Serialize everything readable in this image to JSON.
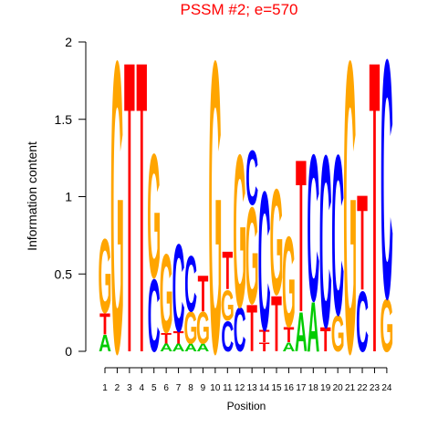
{
  "chart_data": {
    "type": "sequence-logo",
    "title": "PSSM #2; e=570",
    "xlabel": "Position",
    "ylabel": "Information content",
    "ylim": [
      0,
      2
    ],
    "y_ticks": [
      "0",
      "0.5",
      "1",
      "1.5",
      "2"
    ],
    "x_ticks": [
      "1",
      "2",
      "3",
      "4",
      "5",
      "6",
      "7",
      "8",
      "9",
      "10",
      "11",
      "12",
      "13",
      "14",
      "15",
      "16",
      "17",
      "18",
      "19",
      "20",
      "21",
      "22",
      "23",
      "24"
    ],
    "colors": {
      "A": "#00cc00",
      "C": "#0000ff",
      "G": "#ffa500",
      "T": "#ff0000"
    },
    "positions": [
      [
        {
          "letter": "A",
          "height": 0.11
        },
        {
          "letter": "T",
          "height": 0.14
        },
        {
          "letter": "G",
          "height": 0.49
        }
      ],
      [
        {
          "letter": "G",
          "height": 1.93
        }
      ],
      [
        {
          "letter": "T",
          "height": 1.93
        }
      ],
      [
        {
          "letter": "T",
          "height": 1.93
        }
      ],
      [
        {
          "letter": "C",
          "height": 0.48
        },
        {
          "letter": "G",
          "height": 0.82
        }
      ],
      [
        {
          "letter": "A",
          "height": 0.05
        },
        {
          "letter": "T",
          "height": 0.07
        },
        {
          "letter": "G",
          "height": 0.52
        }
      ],
      [
        {
          "letter": "A",
          "height": 0.05
        },
        {
          "letter": "T",
          "height": 0.08
        },
        {
          "letter": "C",
          "height": 0.58
        }
      ],
      [
        {
          "letter": "A",
          "height": 0.05
        },
        {
          "letter": "G",
          "height": 0.21
        },
        {
          "letter": "C",
          "height": 0.37
        }
      ],
      [
        {
          "letter": "A",
          "height": 0.05
        },
        {
          "letter": "G",
          "height": 0.21
        },
        {
          "letter": "T",
          "height": 0.24
        }
      ],
      [
        {
          "letter": "G",
          "height": 1.93
        }
      ],
      [
        {
          "letter": "C",
          "height": 0.2
        },
        {
          "letter": "G",
          "height": 0.2
        },
        {
          "letter": "T",
          "height": 0.25
        }
      ],
      [
        {
          "letter": "C",
          "height": 0.29
        },
        {
          "letter": "G",
          "height": 1.01
        }
      ],
      [
        {
          "letter": "T",
          "height": 0.31
        },
        {
          "letter": "G",
          "height": 0.64
        },
        {
          "letter": "C",
          "height": 0.36
        }
      ],
      [
        {
          "letter": "T",
          "height": 0.06
        },
        {
          "letter": "T",
          "height": 0.08
        },
        {
          "letter": "C",
          "height": 0.92
        }
      ],
      [
        {
          "letter": "T",
          "height": 0.37
        },
        {
          "letter": "G",
          "height": 0.7
        }
      ],
      [
        {
          "letter": "A",
          "height": 0.06
        },
        {
          "letter": "T",
          "height": 0.1
        },
        {
          "letter": "G",
          "height": 0.6
        }
      ],
      [
        {
          "letter": "A",
          "height": 0.26
        },
        {
          "letter": "T",
          "height": 1.01
        }
      ],
      [
        {
          "letter": "A",
          "height": 0.33
        },
        {
          "letter": "C",
          "height": 0.97
        }
      ],
      [
        {
          "letter": "T",
          "height": 0.16
        },
        {
          "letter": "C",
          "height": 1.14
        }
      ],
      [
        {
          "letter": "G",
          "height": 0.24
        },
        {
          "letter": "C",
          "height": 1.06
        }
      ],
      [
        {
          "letter": "G",
          "height": 1.93
        }
      ],
      [
        {
          "letter": "C",
          "height": 0.4
        },
        {
          "letter": "T",
          "height": 0.63
        }
      ],
      [
        {
          "letter": "T",
          "height": 1.93
        }
      ],
      [
        {
          "letter": "G",
          "height": 0.35
        },
        {
          "letter": "C",
          "height": 1.58
        }
      ]
    ]
  }
}
